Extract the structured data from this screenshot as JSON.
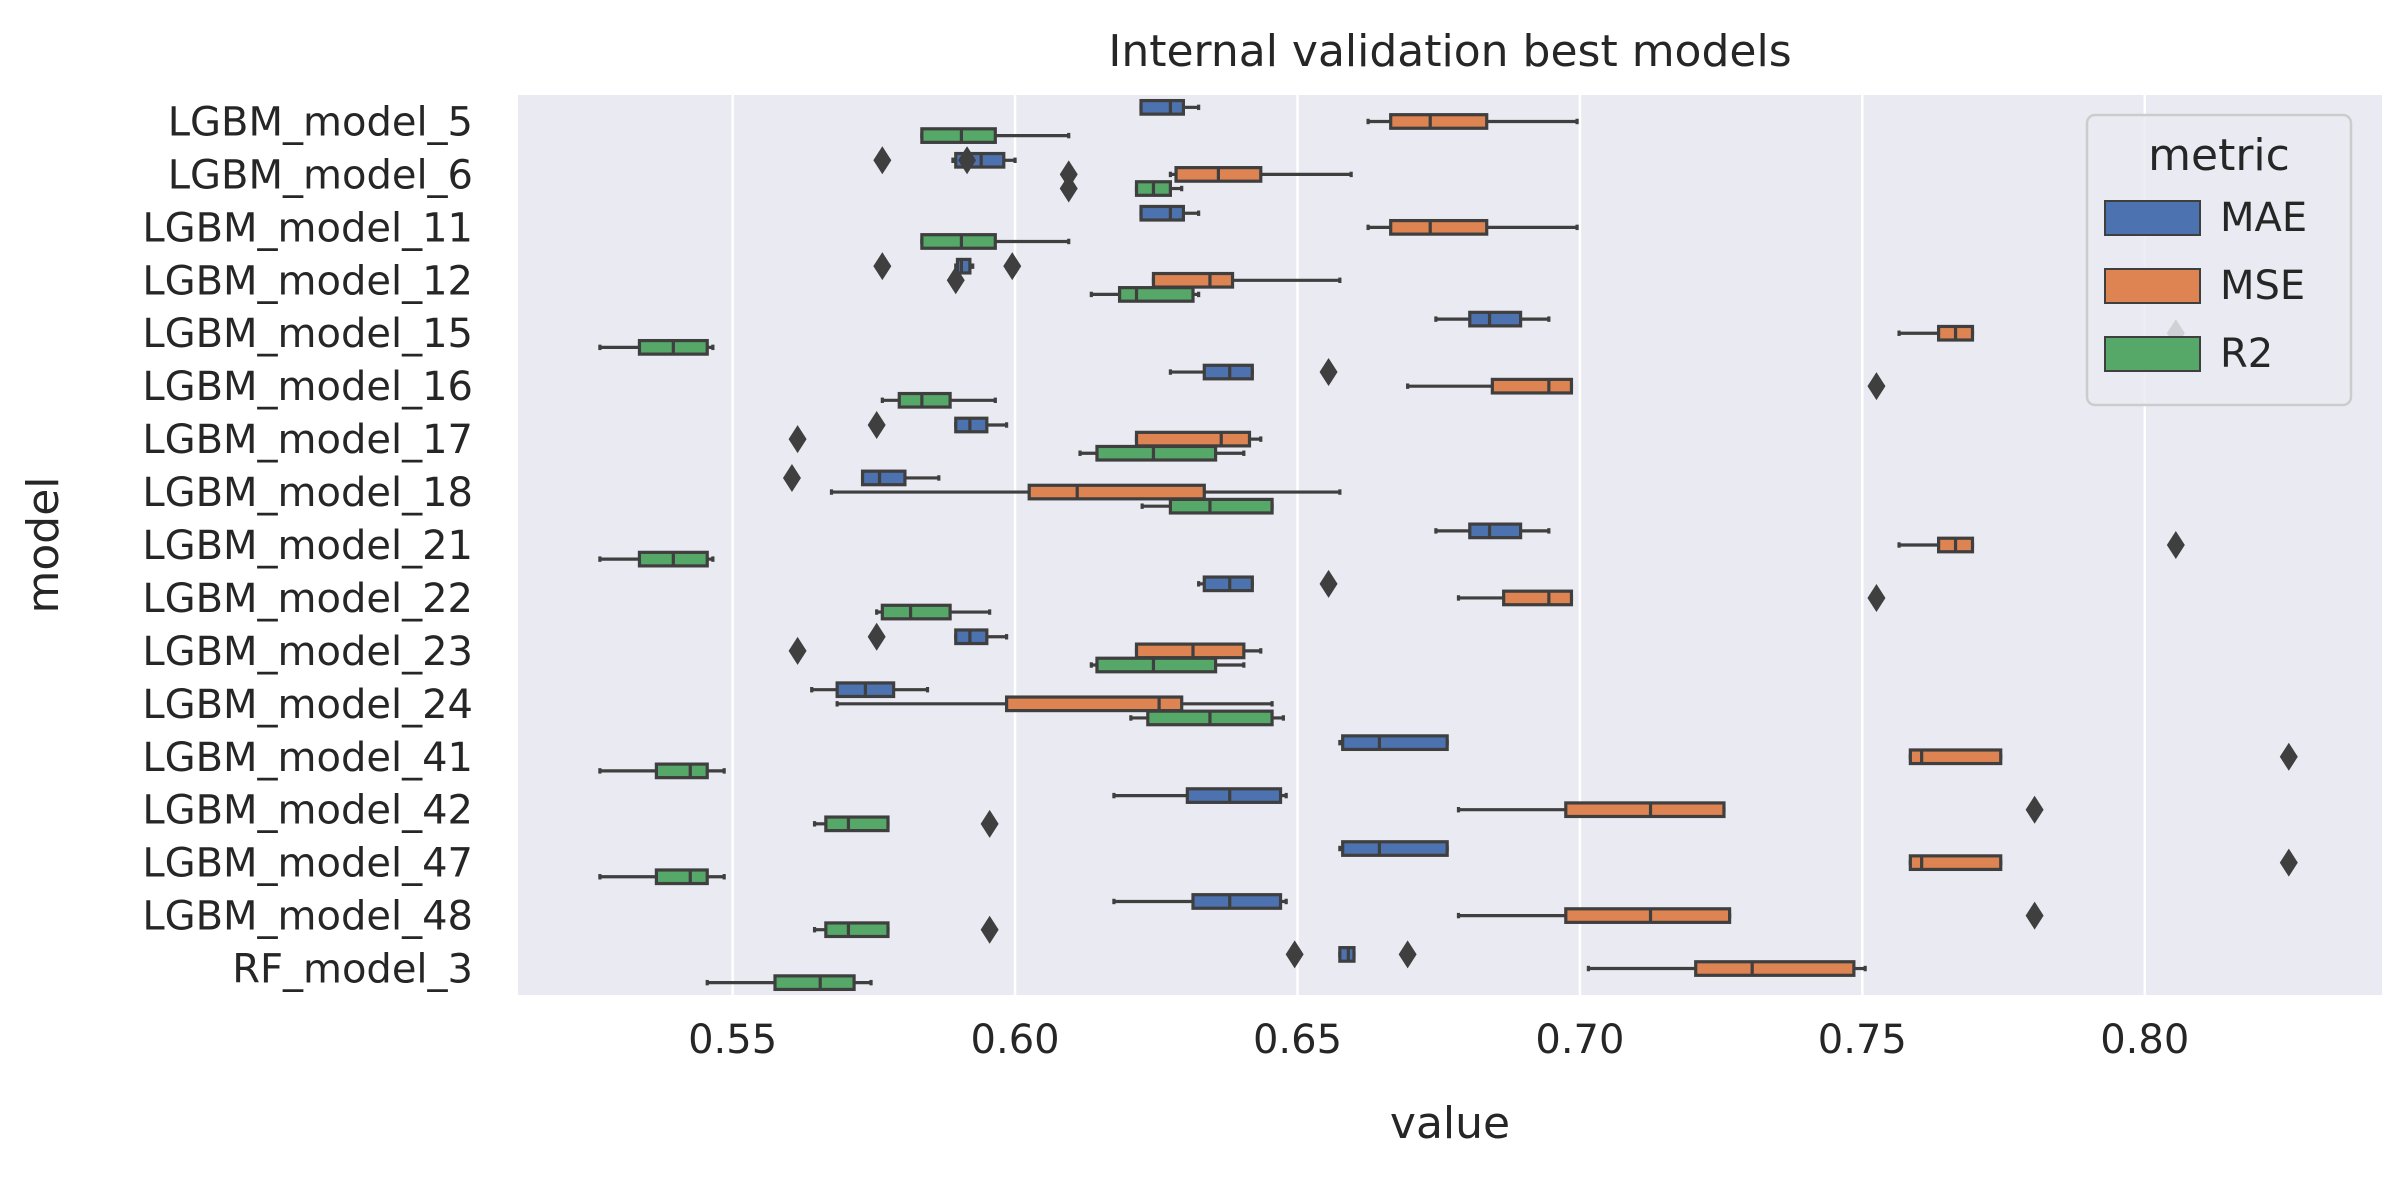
{
  "chart_data": {
    "type": "boxplot",
    "orientation": "horizontal",
    "title": "Internal validation best models",
    "xlabel": "value",
    "ylabel": "model",
    "xlim": [
      0.512,
      0.842
    ],
    "xticks": [
      "0.55",
      "0.60",
      "0.65",
      "0.70",
      "0.75",
      "0.80"
    ],
    "grid": true,
    "legend": {
      "title": "metric",
      "position": "upper-right"
    },
    "colors": {
      "MAE": "#4c72b0",
      "MSE": "#dd8452",
      "R2": "#55a868",
      "background": "#eaeaf2",
      "grid": "#ffffff",
      "edge": "#3f3f3f"
    },
    "categories": [
      "LGBM_model_5",
      "LGBM_model_6",
      "LGBM_model_11",
      "LGBM_model_12",
      "LGBM_model_15",
      "LGBM_model_16",
      "LGBM_model_17",
      "LGBM_model_18",
      "LGBM_model_21",
      "LGBM_model_22",
      "LGBM_model_23",
      "LGBM_model_24",
      "LGBM_model_41",
      "LGBM_model_42",
      "LGBM_model_47",
      "LGBM_model_48",
      "RF_model_3"
    ],
    "series": [
      {
        "name": "MAE",
        "boxes": [
          {
            "whislo": 0.6223,
            "q1": 0.6223,
            "med": 0.6275,
            "q3": 0.6298,
            "whishi": 0.6325,
            "fliers": []
          },
          {
            "whislo": 0.589,
            "q1": 0.5895,
            "med": 0.594,
            "q3": 0.598,
            "whishi": 0.6,
            "fliers": [
              0.5765,
              0.5915
            ]
          },
          {
            "whislo": 0.6223,
            "q1": 0.6223,
            "med": 0.6275,
            "q3": 0.6298,
            "whishi": 0.6325,
            "fliers": []
          },
          {
            "whislo": 0.5895,
            "q1": 0.5898,
            "med": 0.5905,
            "q3": 0.592,
            "whishi": 0.5925,
            "fliers": [
              0.5765,
              0.5995
            ]
          },
          {
            "whislo": 0.6745,
            "q1": 0.6805,
            "med": 0.684,
            "q3": 0.6895,
            "whishi": 0.6945,
            "fliers": []
          },
          {
            "whislo": 0.6275,
            "q1": 0.6335,
            "med": 0.638,
            "q3": 0.642,
            "whishi": 0.642,
            "fliers": [
              0.6555
            ]
          },
          {
            "whislo": 0.5895,
            "q1": 0.5895,
            "med": 0.592,
            "q3": 0.595,
            "whishi": 0.5985,
            "fliers": [
              0.5755
            ]
          },
          {
            "whislo": 0.573,
            "q1": 0.573,
            "med": 0.576,
            "q3": 0.5805,
            "whishi": 0.5865,
            "fliers": [
              0.5605
            ]
          },
          {
            "whislo": 0.6745,
            "q1": 0.6805,
            "med": 0.684,
            "q3": 0.6895,
            "whishi": 0.6945,
            "fliers": []
          },
          {
            "whislo": 0.6325,
            "q1": 0.6335,
            "med": 0.638,
            "q3": 0.642,
            "whishi": 0.642,
            "fliers": [
              0.6555
            ]
          },
          {
            "whislo": 0.5895,
            "q1": 0.5895,
            "med": 0.592,
            "q3": 0.595,
            "whishi": 0.5985,
            "fliers": [
              0.5755
            ]
          },
          {
            "whislo": 0.564,
            "q1": 0.5685,
            "med": 0.5735,
            "q3": 0.5785,
            "whishi": 0.5845,
            "fliers": []
          },
          {
            "whislo": 0.6575,
            "q1": 0.658,
            "med": 0.6645,
            "q3": 0.6765,
            "whishi": 0.6765,
            "fliers": []
          },
          {
            "whislo": 0.6175,
            "q1": 0.6305,
            "med": 0.638,
            "q3": 0.647,
            "whishi": 0.648,
            "fliers": []
          },
          {
            "whislo": 0.6575,
            "q1": 0.658,
            "med": 0.6645,
            "q3": 0.6765,
            "whishi": 0.6765,
            "fliers": []
          },
          {
            "whislo": 0.6175,
            "q1": 0.6315,
            "med": 0.638,
            "q3": 0.647,
            "whishi": 0.648,
            "fliers": []
          },
          {
            "whislo": 0.6575,
            "q1": 0.6575,
            "med": 0.659,
            "q3": 0.66,
            "whishi": 0.66,
            "fliers": [
              0.6495,
              0.6695
            ]
          }
        ]
      },
      {
        "name": "MSE",
        "boxes": [
          {
            "whislo": 0.6625,
            "q1": 0.6665,
            "med": 0.6735,
            "q3": 0.6835,
            "whishi": 0.6995,
            "fliers": []
          },
          {
            "whislo": 0.6275,
            "q1": 0.6285,
            "med": 0.636,
            "q3": 0.6435,
            "whishi": 0.6595,
            "fliers": [
              0.6095
            ]
          },
          {
            "whislo": 0.6625,
            "q1": 0.6665,
            "med": 0.6735,
            "q3": 0.6835,
            "whishi": 0.6995,
            "fliers": []
          },
          {
            "whislo": 0.6245,
            "q1": 0.6245,
            "med": 0.6345,
            "q3": 0.6385,
            "whishi": 0.6575,
            "fliers": [
              0.5895
            ]
          },
          {
            "whislo": 0.7565,
            "q1": 0.7635,
            "med": 0.7665,
            "q3": 0.7695,
            "whishi": 0.7695,
            "fliers": [
              0.8055
            ]
          },
          {
            "whislo": 0.6695,
            "q1": 0.6845,
            "med": 0.6945,
            "q3": 0.6985,
            "whishi": 0.6985,
            "fliers": [
              0.7525
            ]
          },
          {
            "whislo": 0.6215,
            "q1": 0.6215,
            "med": 0.6365,
            "q3": 0.6415,
            "whishi": 0.6435,
            "fliers": [
              0.5615
            ]
          },
          {
            "whislo": 0.5675,
            "q1": 0.6025,
            "med": 0.611,
            "q3": 0.6335,
            "whishi": 0.6575,
            "fliers": []
          },
          {
            "whislo": 0.7565,
            "q1": 0.7635,
            "med": 0.7665,
            "q3": 0.7695,
            "whishi": 0.7695,
            "fliers": [
              0.8055
            ]
          },
          {
            "whislo": 0.6785,
            "q1": 0.6865,
            "med": 0.6945,
            "q3": 0.6985,
            "whishi": 0.6985,
            "fliers": [
              0.7525
            ]
          },
          {
            "whislo": 0.6215,
            "q1": 0.6215,
            "med": 0.6315,
            "q3": 0.6405,
            "whishi": 0.6435,
            "fliers": [
              0.5615
            ]
          },
          {
            "whislo": 0.5685,
            "q1": 0.5985,
            "med": 0.6255,
            "q3": 0.6295,
            "whishi": 0.6455,
            "fliers": []
          },
          {
            "whislo": 0.7585,
            "q1": 0.7585,
            "med": 0.7605,
            "q3": 0.7745,
            "whishi": 0.7745,
            "fliers": [
              0.8255
            ]
          },
          {
            "whislo": 0.6785,
            "q1": 0.6975,
            "med": 0.7125,
            "q3": 0.7255,
            "whishi": 0.7255,
            "fliers": [
              0.7805
            ]
          },
          {
            "whislo": 0.7585,
            "q1": 0.7585,
            "med": 0.7605,
            "q3": 0.7745,
            "whishi": 0.7745,
            "fliers": [
              0.8255
            ]
          },
          {
            "whislo": 0.6785,
            "q1": 0.6975,
            "med": 0.7125,
            "q3": 0.7265,
            "whishi": 0.7265,
            "fliers": [
              0.7805
            ]
          },
          {
            "whislo": 0.7015,
            "q1": 0.7205,
            "med": 0.7305,
            "q3": 0.7485,
            "whishi": 0.7505,
            "fliers": []
          }
        ]
      },
      {
        "name": "R2",
        "boxes": [
          {
            "whislo": 0.5835,
            "q1": 0.5835,
            "med": 0.5905,
            "q3": 0.5965,
            "whishi": 0.6095,
            "fliers": []
          },
          {
            "whislo": 0.6215,
            "q1": 0.6215,
            "med": 0.6245,
            "q3": 0.6275,
            "whishi": 0.6295,
            "fliers": [
              0.6095
            ]
          },
          {
            "whislo": 0.5835,
            "q1": 0.5835,
            "med": 0.5905,
            "q3": 0.5965,
            "whishi": 0.6095,
            "fliers": []
          },
          {
            "whislo": 0.6135,
            "q1": 0.6185,
            "med": 0.6215,
            "q3": 0.6315,
            "whishi": 0.6325,
            "fliers": []
          },
          {
            "whislo": 0.5265,
            "q1": 0.5335,
            "med": 0.5395,
            "q3": 0.5455,
            "whishi": 0.5465,
            "fliers": []
          },
          {
            "whislo": 0.5765,
            "q1": 0.5795,
            "med": 0.5835,
            "q3": 0.5885,
            "whishi": 0.5965,
            "fliers": []
          },
          {
            "whislo": 0.6115,
            "q1": 0.6145,
            "med": 0.6245,
            "q3": 0.6355,
            "whishi": 0.6405,
            "fliers": []
          },
          {
            "whislo": 0.6225,
            "q1": 0.6275,
            "med": 0.6345,
            "q3": 0.6455,
            "whishi": 0.6455,
            "fliers": []
          },
          {
            "whislo": 0.5265,
            "q1": 0.5335,
            "med": 0.5395,
            "q3": 0.5455,
            "whishi": 0.5465,
            "fliers": []
          },
          {
            "whislo": 0.5755,
            "q1": 0.5765,
            "med": 0.5815,
            "q3": 0.5885,
            "whishi": 0.5955,
            "fliers": []
          },
          {
            "whislo": 0.6135,
            "q1": 0.6145,
            "med": 0.6245,
            "q3": 0.6355,
            "whishi": 0.6405,
            "fliers": []
          },
          {
            "whislo": 0.6205,
            "q1": 0.6235,
            "med": 0.6345,
            "q3": 0.6455,
            "whishi": 0.6475,
            "fliers": []
          },
          {
            "whislo": 0.5265,
            "q1": 0.5365,
            "med": 0.5425,
            "q3": 0.5455,
            "whishi": 0.5485,
            "fliers": []
          },
          {
            "whislo": 0.5645,
            "q1": 0.5665,
            "med": 0.5705,
            "q3": 0.5775,
            "whishi": 0.5775,
            "fliers": [
              0.5955
            ]
          },
          {
            "whislo": 0.5265,
            "q1": 0.5365,
            "med": 0.5425,
            "q3": 0.5455,
            "whishi": 0.5485,
            "fliers": []
          },
          {
            "whislo": 0.5645,
            "q1": 0.5665,
            "med": 0.5705,
            "q3": 0.5775,
            "whishi": 0.5775,
            "fliers": [
              0.5955
            ]
          },
          {
            "whislo": 0.5455,
            "q1": 0.5575,
            "med": 0.5655,
            "q3": 0.5715,
            "whishi": 0.5745,
            "fliers": []
          }
        ]
      }
    ]
  }
}
